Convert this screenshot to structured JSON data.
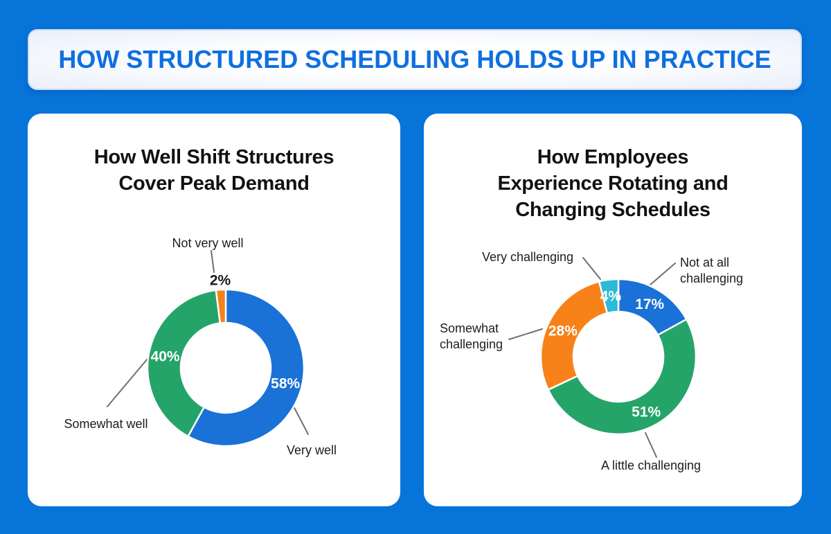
{
  "page": {
    "background_color": "#0774d9"
  },
  "header": {
    "title": "HOW STRUCTURED SCHEDULING HOLDS UP IN PRACTICE",
    "text_color": "#0f6fe0"
  },
  "chart_data": [
    {
      "type": "donut",
      "title": "How Well Shift Structures Cover Peak Demand",
      "title_lines": [
        "How Well Shift Structures",
        "Cover Peak Demand"
      ],
      "legend_position": "callout-labels",
      "slices": [
        {
          "label": "Very well",
          "value": 58,
          "pct_text": "58%",
          "color": "#1a71d6",
          "pct_color": "#ffffff",
          "pct_inside": true
        },
        {
          "label": "Somewhat well",
          "value": 40,
          "pct_text": "40%",
          "color": "#25a469",
          "pct_color": "#ffffff",
          "pct_inside": true
        },
        {
          "label": "Not very well",
          "value": 2,
          "pct_text": "2%",
          "color": "#f7821a",
          "pct_color": "#1a1a1a",
          "pct_inside": false
        }
      ]
    },
    {
      "type": "donut",
      "title": "How Employees Experience Rotating and Changing Schedules",
      "title_lines": [
        "How Employees",
        "Experience Rotating and",
        "Changing Schedules"
      ],
      "legend_position": "callout-labels",
      "slices": [
        {
          "label": "Not at all challenging",
          "value": 17,
          "pct_text": "17%",
          "color": "#1a71d6",
          "pct_color": "#ffffff",
          "pct_inside": true
        },
        {
          "label": "A little challenging",
          "value": 51,
          "pct_text": "51%",
          "color": "#25a469",
          "pct_color": "#ffffff",
          "pct_inside": true
        },
        {
          "label": "Somewhat challenging",
          "value": 28,
          "pct_text": "28%",
          "color": "#f7821a",
          "pct_color": "#ffffff",
          "pct_inside": true
        },
        {
          "label": "Very challenging",
          "value": 4,
          "pct_text": "4%",
          "color": "#2cbad6",
          "pct_color": "#ffffff",
          "pct_inside": true
        }
      ]
    }
  ]
}
